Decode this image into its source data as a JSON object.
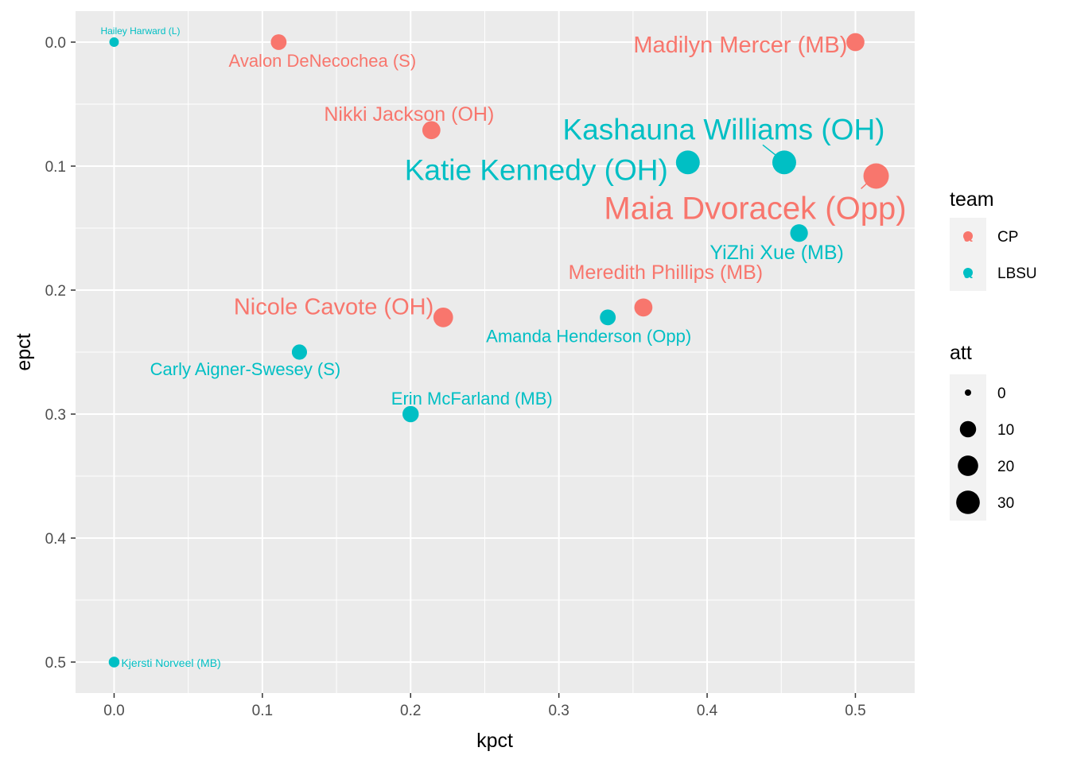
{
  "chart_data": {
    "type": "scatter",
    "xlabel": "kpct",
    "ylabel": "epct",
    "xlim": [
      -0.026,
      0.54
    ],
    "ylim": [
      -0.025,
      0.525
    ],
    "y_reversed": true,
    "x_ticks": [
      0.0,
      0.1,
      0.2,
      0.3,
      0.4,
      0.5
    ],
    "x_tick_labels": [
      "0.0",
      "0.1",
      "0.2",
      "0.3",
      "0.4",
      "0.5"
    ],
    "y_ticks": [
      0.0,
      0.1,
      0.2,
      0.3,
      0.4,
      0.5
    ],
    "y_tick_labels": [
      "0.0",
      "0.1",
      "0.2",
      "0.3",
      "0.4",
      "0.5"
    ],
    "grid": true,
    "background": "#EBEBEB",
    "legend_color": {
      "title": "team",
      "entries": [
        {
          "label": "CP",
          "color": "#F8766D"
        },
        {
          "label": "LBSU",
          "color": "#00BFC4"
        }
      ]
    },
    "legend_size": {
      "title": "att",
      "entries": [
        {
          "label": "0",
          "value": 0
        },
        {
          "label": "10",
          "value": 10
        },
        {
          "label": "20",
          "value": 20
        },
        {
          "label": "30",
          "value": 30
        }
      ]
    },
    "points": [
      {
        "label": "Hailey Harward (L)",
        "team": "LBSU",
        "kpct": 0.0,
        "epct": 0.0,
        "att": 1
      },
      {
        "label": "Avalon DeNecochea (S)",
        "team": "CP",
        "kpct": 0.111,
        "epct": 0.0,
        "att": 9
      },
      {
        "label": "Madilyn Mercer (MB)",
        "team": "CP",
        "kpct": 0.5,
        "epct": 0.0,
        "att": 14
      },
      {
        "label": "Nikki Jackson (OH)",
        "team": "CP",
        "kpct": 0.214,
        "epct": 0.071,
        "att": 14
      },
      {
        "label": "Kashauna Williams (OH)",
        "team": "LBSU",
        "kpct": 0.452,
        "epct": 0.097,
        "att": 31
      },
      {
        "label": "Katie Kennedy (OH)",
        "team": "LBSU",
        "kpct": 0.387,
        "epct": 0.097,
        "att": 31
      },
      {
        "label": "Maia Dvoracek (Opp)",
        "team": "CP",
        "kpct": 0.514,
        "epct": 0.108,
        "att": 37
      },
      {
        "label": "YiZhi Xue (MB)",
        "team": "LBSU",
        "kpct": 0.462,
        "epct": 0.154,
        "att": 13
      },
      {
        "label": "Meredith Phillips (MB)",
        "team": "CP",
        "kpct": 0.357,
        "epct": 0.214,
        "att": 14
      },
      {
        "label": "Nicole Cavote (OH)",
        "team": "CP",
        "kpct": 0.222,
        "epct": 0.222,
        "att": 18
      },
      {
        "label": "Amanda Henderson (Opp)",
        "team": "LBSU",
        "kpct": 0.333,
        "epct": 0.222,
        "att": 9
      },
      {
        "label": "Carly Aigner-Swesey (S)",
        "team": "LBSU",
        "kpct": 0.125,
        "epct": 0.25,
        "att": 8
      },
      {
        "label": "Erin McFarland (MB)",
        "team": "LBSU",
        "kpct": 0.2,
        "epct": 0.3,
        "att": 10
      },
      {
        "label": "Kjersti Norveel (MB)",
        "team": "LBSU",
        "kpct": 0.0,
        "epct": 0.5,
        "att": 2
      }
    ]
  }
}
